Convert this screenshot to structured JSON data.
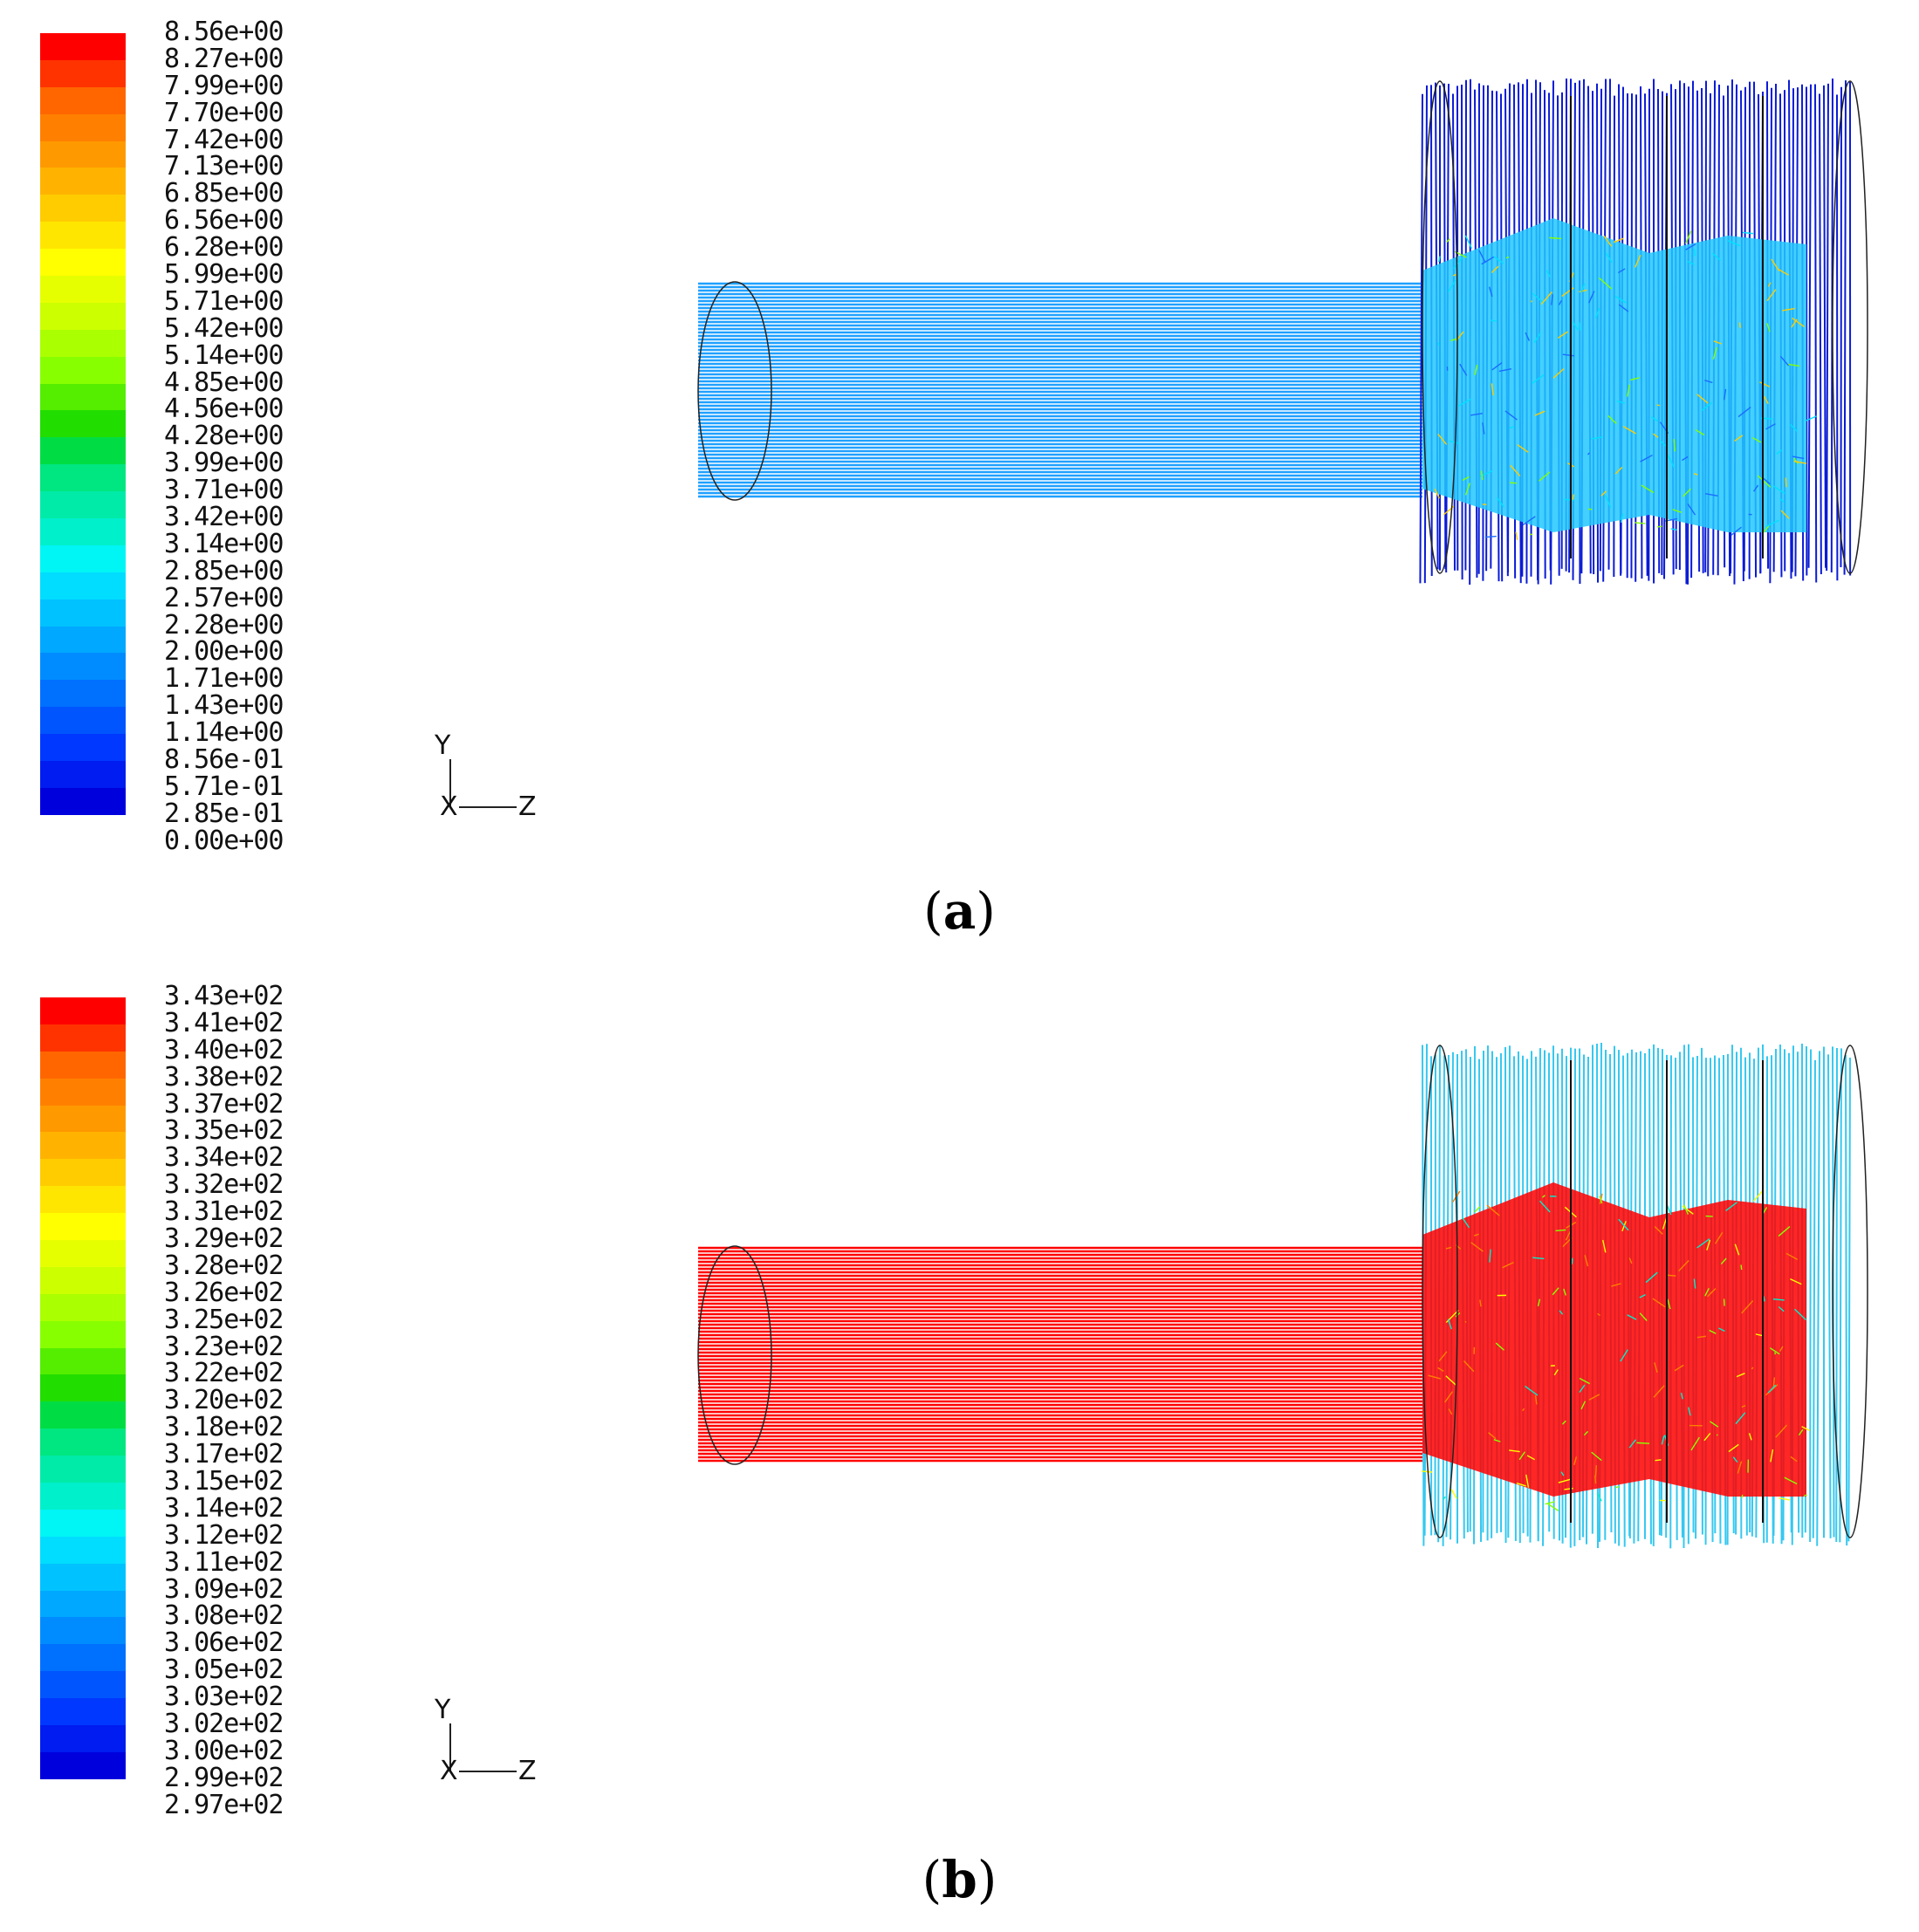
{
  "panels": [
    {
      "label": "a",
      "legend_colors": [
        "#ff0000",
        "#ff3300",
        "#ff6600",
        "#ff8000",
        "#ff9900",
        "#ffb300",
        "#ffcc00",
        "#ffe600",
        "#ffff00",
        "#e6ff00",
        "#ccff00",
        "#aaff00",
        "#88ff00",
        "#55ee00",
        "#22dd00",
        "#00dd44",
        "#00e680",
        "#00eba8",
        "#00f0cc",
        "#00f5f5",
        "#00ddff",
        "#00c2ff",
        "#00a8ff",
        "#008cff",
        "#0070ff",
        "#0055ff",
        "#0038ff",
        "#001cf0",
        "#0000dd"
      ],
      "ticks": [
        "8.56e+00",
        "8.27e+00",
        "7.99e+00",
        "7.70e+00",
        "7.42e+00",
        "7.13e+00",
        "6.85e+00",
        "6.56e+00",
        "6.28e+00",
        "5.99e+00",
        "5.71e+00",
        "5.42e+00",
        "5.14e+00",
        "4.85e+00",
        "4.56e+00",
        "4.28e+00",
        "3.99e+00",
        "3.71e+00",
        "3.42e+00",
        "3.14e+00",
        "2.85e+00",
        "2.57e+00",
        "2.28e+00",
        "2.00e+00",
        "1.71e+00",
        "1.43e+00",
        "1.14e+00",
        "8.56e-01",
        "5.71e-01",
        "2.85e-01",
        "0.00e+00"
      ],
      "axes": {
        "y": "Y",
        "x": "X",
        "z": "Z"
      },
      "inlet_color": "#1fa0ff",
      "chamber_color": "#0a1bd6",
      "core_color": "#22c8ff"
    },
    {
      "label": "b",
      "legend_colors": [
        "#ff0000",
        "#ff3300",
        "#ff6600",
        "#ff8000",
        "#ff9900",
        "#ffb300",
        "#ffcc00",
        "#ffe600",
        "#ffff00",
        "#e6ff00",
        "#ccff00",
        "#aaff00",
        "#88ff00",
        "#55ee00",
        "#22dd00",
        "#00dd44",
        "#00e680",
        "#00eba8",
        "#00f0cc",
        "#00f5f5",
        "#00ddff",
        "#00c2ff",
        "#00a8ff",
        "#008cff",
        "#0070ff",
        "#0055ff",
        "#0038ff",
        "#001cf0",
        "#0000dd"
      ],
      "ticks": [
        "3.43e+02",
        "3.41e+02",
        "3.40e+02",
        "3.38e+02",
        "3.37e+02",
        "3.35e+02",
        "3.34e+02",
        "3.32e+02",
        "3.31e+02",
        "3.29e+02",
        "3.28e+02",
        "3.26e+02",
        "3.25e+02",
        "3.23e+02",
        "3.22e+02",
        "3.20e+02",
        "3.18e+02",
        "3.17e+02",
        "3.15e+02",
        "3.14e+02",
        "3.12e+02",
        "3.11e+02",
        "3.09e+02",
        "3.08e+02",
        "3.06e+02",
        "3.05e+02",
        "3.03e+02",
        "3.02e+02",
        "3.00e+02",
        "2.99e+02",
        "2.97e+02"
      ],
      "axes": {
        "y": "Y",
        "x": "X",
        "z": "Z"
      },
      "inlet_color": "#ff0000",
      "chamber_color": "#35c8f0",
      "core_color": "#ff0000"
    }
  ]
}
